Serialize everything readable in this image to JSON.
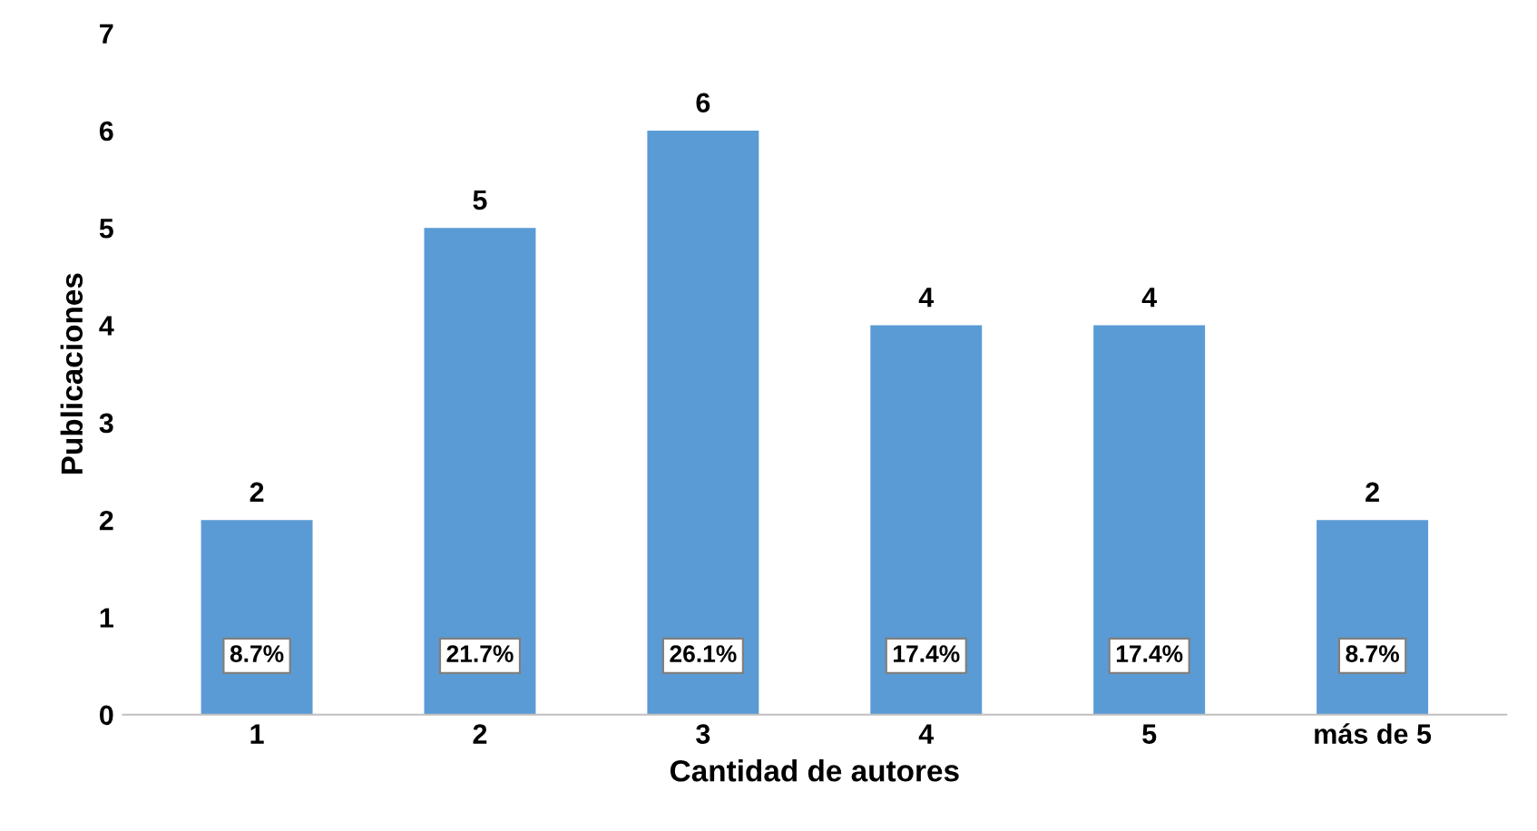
{
  "chart_data": {
    "type": "bar",
    "xlabel": "Cantidad de autores",
    "ylabel": "Publicaciones",
    "categories": [
      "1",
      "2",
      "3",
      "4",
      "5",
      "más de 5"
    ],
    "values": [
      2,
      5,
      6,
      4,
      4,
      2
    ],
    "color": "#5b9bd5",
    "ylim": [
      0,
      7
    ],
    "yticks": [
      0,
      1,
      2,
      3,
      4,
      5,
      6,
      7
    ],
    "grid": false,
    "data_labels": true,
    "annotations": [
      "8.7%",
      "21.7%",
      "26.1%",
      "17.4%",
      "17.4%",
      "8.7%"
    ]
  }
}
